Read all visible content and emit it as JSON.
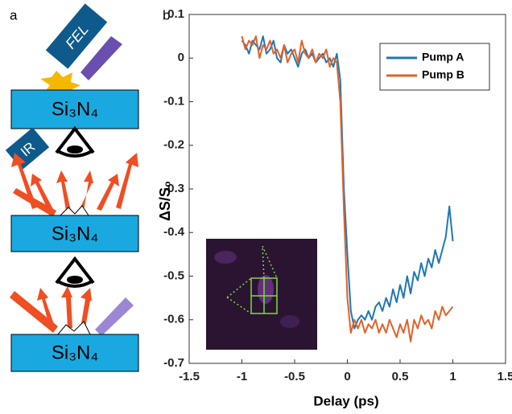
{
  "panel_labels": [
    "a",
    "b"
  ],
  "schematic": {
    "fel": "FEL",
    "ir": "IR",
    "substrates": [
      "Si₃N₄",
      "Si₃N₄",
      "Si₃N₄"
    ]
  },
  "chart_data": {
    "type": "line",
    "xlabel": "Delay (ps)",
    "ylabel": "ΔS/S₀",
    "xlim": [
      -1.5,
      1.5
    ],
    "xticks": [
      -1.5,
      -1,
      -0.5,
      0,
      0.5,
      1,
      1.5
    ],
    "ylim": [
      -0.7,
      0.1
    ],
    "yticks": [
      -0.7,
      -0.6,
      -0.5,
      -0.4,
      -0.3,
      -0.2,
      -0.1,
      0,
      0.1
    ],
    "legend": "northeast",
    "x": [
      -1,
      -0.967,
      -0.933,
      -0.9,
      -0.867,
      -0.833,
      -0.8,
      -0.767,
      -0.733,
      -0.7,
      -0.667,
      -0.633,
      -0.6,
      -0.567,
      -0.533,
      -0.5,
      -0.467,
      -0.433,
      -0.4,
      -0.367,
      -0.333,
      -0.3,
      -0.267,
      -0.233,
      -0.2,
      -0.167,
      -0.133,
      -0.1,
      -0.067,
      -0.033,
      0,
      0.033,
      0.067,
      0.1,
      0.133,
      0.167,
      0.2,
      0.233,
      0.267,
      0.3,
      0.333,
      0.367,
      0.4,
      0.433,
      0.467,
      0.5,
      0.533,
      0.567,
      0.6,
      0.633,
      0.667,
      0.7,
      0.733,
      0.767,
      0.8,
      0.833,
      0.867,
      0.9,
      0.933,
      0.967,
      1
    ],
    "series": [
      {
        "name": "Pump A",
        "color": "#1f77b4",
        "values": [
          0.04,
          0.03,
          0.01,
          0.04,
          0.03,
          0.02,
          0.05,
          0.01,
          0.02,
          0.04,
          0,
          -0.01,
          0.03,
          0.01,
          0.02,
          0,
          -0.02,
          0.01,
          0.02,
          0,
          0.01,
          -0.01,
          0,
          0.01,
          -0.01,
          0,
          -0.02,
          0.01,
          -0.05,
          -0.3,
          -0.45,
          -0.58,
          -0.62,
          -0.6,
          -0.59,
          -0.6,
          -0.58,
          -0.6,
          -0.57,
          -0.56,
          -0.58,
          -0.55,
          -0.57,
          -0.53,
          -0.56,
          -0.52,
          -0.55,
          -0.5,
          -0.54,
          -0.49,
          -0.51,
          -0.47,
          -0.5,
          -0.46,
          -0.48,
          -0.44,
          -0.47,
          -0.44,
          -0.41,
          -0.34,
          -0.42
        ]
      },
      {
        "name": "Pump B",
        "color": "#e0622a",
        "values": [
          0.05,
          0.02,
          0.04,
          0.03,
          0.05,
          0,
          0.03,
          0.02,
          0.04,
          0.01,
          0.02,
          0,
          0.03,
          -0.01,
          0.01,
          0.02,
          -0.01,
          0.04,
          0.01,
          0,
          0.02,
          -0.01,
          0.01,
          0,
          0.02,
          -0.02,
          0,
          -0.01,
          -0.1,
          -0.35,
          -0.55,
          -0.63,
          -0.6,
          -0.62,
          -0.6,
          -0.63,
          -0.61,
          -0.62,
          -0.6,
          -0.63,
          -0.61,
          -0.63,
          -0.6,
          -0.62,
          -0.64,
          -0.61,
          -0.63,
          -0.6,
          -0.65,
          -0.6,
          -0.62,
          -0.59,
          -0.61,
          -0.6,
          -0.62,
          -0.58,
          -0.6,
          -0.57,
          -0.59,
          -0.58,
          -0.57
        ]
      }
    ]
  }
}
